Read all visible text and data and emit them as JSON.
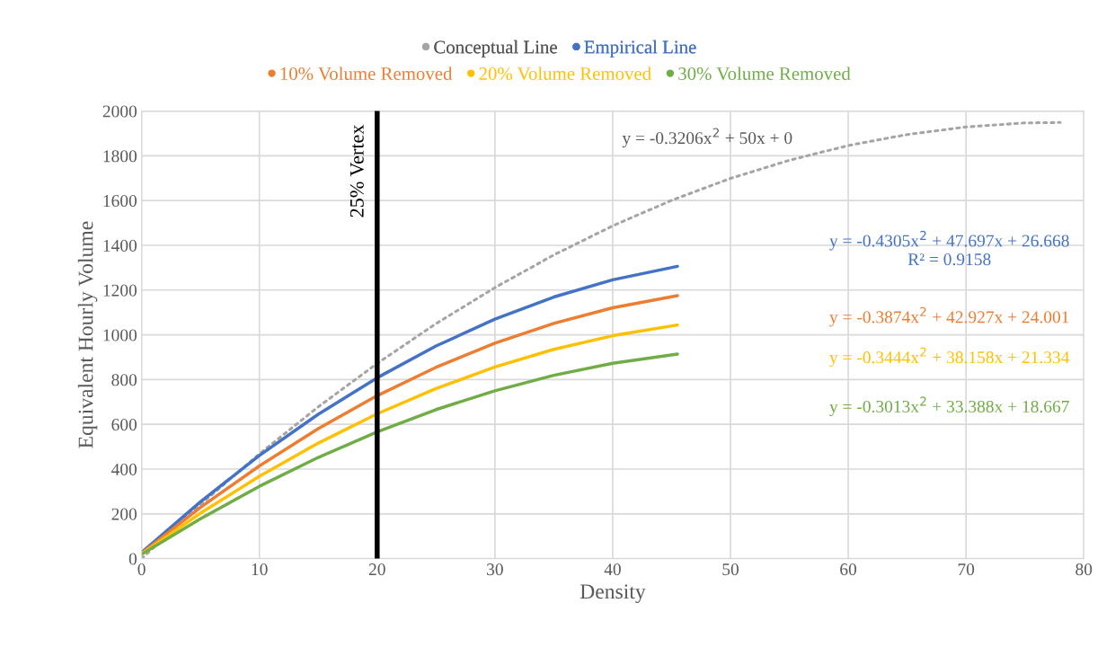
{
  "chart_data": {
    "type": "line",
    "xlabel": "Density",
    "ylabel": "Equivalent Hourly Volume",
    "xlim": [
      0,
      80
    ],
    "xticks": [
      0,
      10,
      20,
      30,
      40,
      50,
      60,
      70,
      80
    ],
    "ylim": [
      0,
      2000
    ],
    "yticks": [
      0,
      200,
      400,
      600,
      800,
      1000,
      1200,
      1400,
      1600,
      1800,
      2000
    ],
    "grid": true,
    "legend": "top",
    "marker": "none",
    "series": [
      {
        "name": "Conceptual Line",
        "color": "#a5a5a5",
        "line_style": "dotted",
        "x": [
          0,
          5,
          10,
          15,
          20,
          25,
          30,
          35,
          40,
          45,
          50,
          55,
          60,
          65,
          70,
          75,
          78
        ],
        "values": [
          0,
          242,
          468,
          678,
          872,
          1050,
          1211,
          1357,
          1487,
          1601,
          1699,
          1780,
          1846,
          1895,
          1929,
          1947,
          1949
        ]
      },
      {
        "name": "Empirical Line",
        "color": "#4472c4",
        "line_style": "solid",
        "x": [
          0,
          5,
          10,
          15,
          20,
          25,
          30,
          35,
          40,
          45.5
        ],
        "values": [
          27,
          254,
          461,
          645,
          808,
          950,
          1070,
          1169,
          1246,
          1306
        ]
      },
      {
        "name": "10% Volume Removed",
        "color": "#ed7d31",
        "line_style": "solid",
        "x": [
          0,
          5,
          10,
          15,
          20,
          25,
          30,
          35,
          40,
          45.5
        ],
        "values": [
          24,
          229,
          414,
          581,
          728,
          855,
          963,
          1051,
          1121,
          1175
        ]
      },
      {
        "name": "20% Volume Removed",
        "color": "#ffc000",
        "line_style": "solid",
        "x": [
          0,
          5,
          10,
          15,
          20,
          25,
          30,
          35,
          40,
          45.5
        ],
        "values": [
          21,
          203,
          368,
          516,
          647,
          760,
          856,
          935,
          996,
          1044
        ]
      },
      {
        "name": "30% Volume Removed",
        "color": "#70ad47",
        "line_style": "solid",
        "x": [
          0,
          5,
          10,
          15,
          20,
          25,
          30,
          35,
          40,
          45.5
        ],
        "values": [
          19,
          178,
          323,
          452,
          566,
          666,
          750,
          819,
          873,
          914
        ]
      }
    ],
    "ref_lines": [
      {
        "axis": "x",
        "value": 20,
        "label": "25% Vertex",
        "color": "#000000",
        "line_style": "solid"
      }
    ],
    "annotations": [
      "y = -0.3206x$^{2}$ + 50x + 0",
      "y = -0.4305x$^{2}$ + 47.697x + 26.668\nR² = 0.9158",
      "y = -0.3874x$^{2}$ + 42.927x + 24.001",
      "y = -0.3444x$^{2}$ + 38.158x + 21.334",
      "y = -0.3013x$^{2}$ + 33.388x + 18.667"
    ]
  }
}
